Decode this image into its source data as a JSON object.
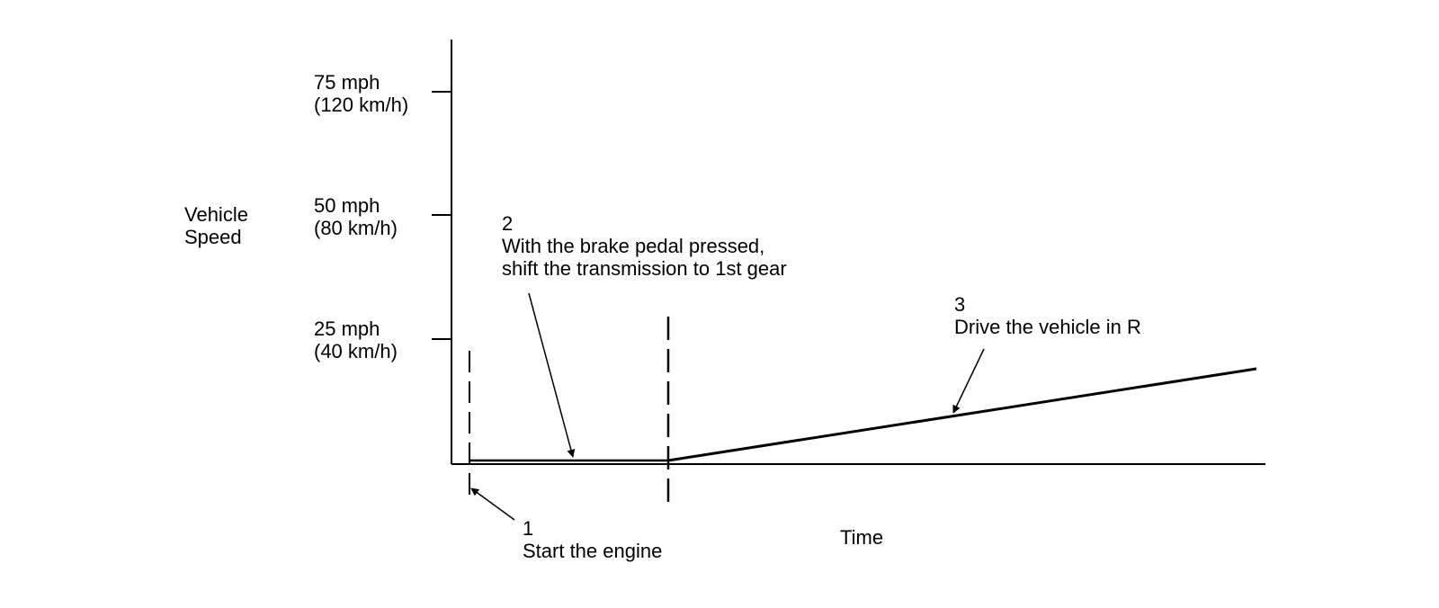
{
  "y_axis": {
    "label_lines": [
      "Vehicle",
      "Speed"
    ],
    "ticks": [
      {
        "speed_mph": 75,
        "line1": "75 mph",
        "line2": "(120 km/h)"
      },
      {
        "speed_mph": 50,
        "line1": "50 mph",
        "line2": "(80 km/h)"
      },
      {
        "speed_mph": 25,
        "line1": "25 mph",
        "line2": "(40 km/h)"
      }
    ]
  },
  "x_axis": {
    "label": "Time"
  },
  "steps": [
    {
      "number": "1",
      "lines": [
        "Start the engine"
      ]
    },
    {
      "number": "2",
      "lines": [
        "With the brake pedal pressed,",
        "shift the transmission to 1st gear"
      ]
    },
    {
      "number": "3",
      "lines": [
        "Drive the vehicle in R"
      ]
    }
  ]
}
